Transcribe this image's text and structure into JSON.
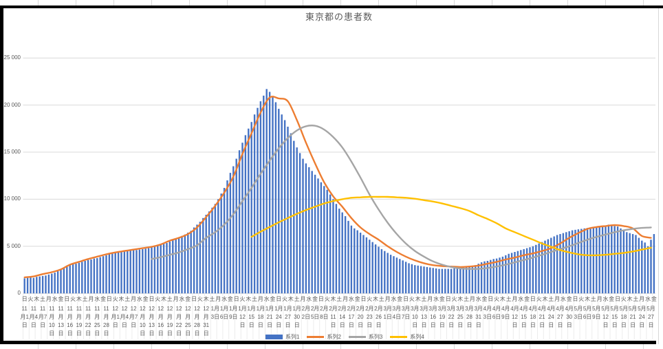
{
  "title": "東京都の患者数",
  "legend": [
    {
      "label": "系列1",
      "color": "#4472C4",
      "swatch": "bar"
    },
    {
      "label": "系列2",
      "color": "#ED7D31",
      "swatch": "line"
    },
    {
      "label": "系列3",
      "color": "#A5A5A5",
      "swatch": "line"
    },
    {
      "label": "系列4",
      "color": "#FFC000",
      "swatch": "line"
    }
  ],
  "y_axis": {
    "tick_labels": [
      "0",
      "5 000",
      "10 000",
      "15 000",
      "20 000",
      "25 000"
    ],
    "tick_values": [
      0,
      5000,
      10000,
      15000,
      20000,
      25000
    ]
  },
  "x_axis": {
    "weekday_labels": "日火木土月水金日火木土月水金日火木土月水金日火木土月水金日火木土月水金日火木土月水金日火木土月水金日火木土月水金日火木土月水金日火木土月水金日火木土月水金日火木土月水金日火木土月水金日火木土月水金日火木土月水金",
    "weekday_step_days": 2,
    "date_step_days": 3,
    "total_days": 209,
    "date_labels": [
      "11\n月1\n日",
      "11\n月4\n日",
      "11\n月7\n日",
      "11\n月\n10\n日",
      "11\n月\n13\n日",
      "11\n月\n16\n日",
      "11\n月\n19\n日",
      "11\n月\n22\n日",
      "11\n月\n25\n日",
      "11\n月\n28\n日",
      "12\n月1\n日",
      "12\n月4\n日",
      "12\n月7\n日",
      "12\n月\n10\n日",
      "12\n月\n13\n日",
      "12\n月\n16\n日",
      "12\n月\n19\n日",
      "12\n月\n22\n日",
      "12\n月\n25\n日",
      "12\n月\n28\n日",
      "12\n月\n31\n日",
      "1月\n3日",
      "1月\n6日",
      "1月\n9日",
      "1月\n12\n日",
      "1月\n15\n日",
      "1月\n18\n日",
      "1月\n21\n日",
      "1月\n24\n日",
      "1月\n27\n日",
      "1月\n30\n日",
      "2月\n2日",
      "2月\n5日",
      "2月\n8日",
      "2月\n11\n日",
      "2月\n14\n日",
      "2月\n17\n日",
      "2月\n20\n日",
      "2月\n23\n日",
      "2月\n26\n日",
      "3月\n1日",
      "3月\n4日",
      "3月\n7日",
      "3月\n10\n日",
      "3月\n13\n日",
      "3月\n16\n日",
      "3月\n19\n日",
      "3月\n22\n日",
      "3月\n25\n日",
      "3月\n28\n日",
      "3月\n31\n日",
      "4月\n3日",
      "4月\n6日",
      "4月\n9日",
      "4月\n12\n日",
      "4月\n15\n日",
      "4月\n18\n日",
      "4月\n21\n日",
      "4月\n24\n日",
      "4月\n27\n日",
      "4月\n30\n日",
      "5月\n3日",
      "5月\n6日",
      "5月\n9日",
      "5月\n12\n日",
      "5月\n15\n日",
      "5月\n18\n日",
      "5月\n21\n日",
      "5月\n24\n日",
      "5月\n27\n日"
    ]
  },
  "chart_data": {
    "type": "bar",
    "subtype": "combo-bar-lines",
    "title": "東京都の患者数",
    "xlabel": "",
    "ylabel": "",
    "ylim": [
      0,
      25000
    ],
    "x_start_date": "11月1日",
    "x_end_date": "5月29日",
    "grid": true,
    "legend_position": "bottom",
    "series": [
      {
        "name": "系列1",
        "type": "bar",
        "color": "#4472C4",
        "start_day": 0,
        "step_days": 1,
        "values": [
          1600,
          1650,
          1700,
          1650,
          1750,
          1800,
          1850,
          1900,
          2000,
          2100,
          2200,
          2350,
          2500,
          2700,
          2900,
          3000,
          3100,
          3150,
          3250,
          3350,
          3450,
          3550,
          3600,
          3700,
          3750,
          3850,
          3950,
          4050,
          4150,
          4250,
          4300,
          4350,
          4400,
          4450,
          4500,
          4550,
          4600,
          4600,
          4650,
          4700,
          4750,
          4800,
          4900,
          5000,
          5100,
          5150,
          5250,
          5350,
          5500,
          5650,
          5800,
          5950,
          6100,
          6250,
          6450,
          6650,
          7000,
          7300,
          7600,
          8000,
          8350,
          8700,
          9100,
          9500,
          10000,
          10600,
          11200,
          12000,
          12800,
          13500,
          14300,
          15200,
          16000,
          16800,
          17500,
          18200,
          19000,
          19700,
          20400,
          21000,
          21700,
          21400,
          20900,
          20300,
          19600,
          19000,
          18400,
          17700,
          17000,
          16200,
          15500,
          14900,
          14300,
          13800,
          13400,
          13000,
          12600,
          12200,
          11800,
          11400,
          11000,
          10500,
          10000,
          9500,
          9000,
          8600,
          8200,
          7700,
          7200,
          6900,
          6700,
          6450,
          6200,
          5950,
          5700,
          5450,
          5200,
          4950,
          4700,
          4500,
          4300,
          4100,
          3950,
          3800,
          3650,
          3500,
          3350,
          3200,
          3100,
          3000,
          2950,
          2900,
          2850,
          2800,
          2750,
          2700,
          2650,
          2600,
          2600,
          2600,
          2600,
          2600,
          2650,
          2650,
          2700,
          2750,
          2800,
          2850,
          2900,
          3000,
          3150,
          3300,
          3400,
          3450,
          3550,
          3650,
          3700,
          3800,
          3900,
          4050,
          4200,
          4300,
          4400,
          4500,
          4600,
          4700,
          4800,
          4900,
          5000,
          5150,
          5300,
          5450,
          5600,
          5750,
          5900,
          6050,
          6200,
          6300,
          6400,
          6500,
          6600,
          6700,
          6750,
          6800,
          6850,
          6900,
          6950,
          6950,
          7000,
          7000,
          7050,
          7100,
          7200,
          7300,
          7200,
          7150,
          7100,
          6900,
          6700,
          6500,
          6400,
          6300,
          6200,
          5900,
          5600,
          5400,
          5000,
          5700,
          6300
        ]
      },
      {
        "name": "系列2",
        "type": "line",
        "color": "#ED7D31",
        "start_day": 0,
        "step_days": 3,
        "values": [
          1700,
          1800,
          2050,
          2250,
          2550,
          3050,
          3350,
          3650,
          3900,
          4150,
          4350,
          4500,
          4650,
          4800,
          4950,
          5200,
          5600,
          5900,
          6300,
          7000,
          8100,
          9300,
          10700,
          12400,
          14800,
          17000,
          19200,
          20800,
          20700,
          20400,
          18400,
          16000,
          13800,
          11800,
          10300,
          9200,
          8000,
          7000,
          6300,
          5700,
          5000,
          4400,
          3900,
          3500,
          3200,
          3000,
          2900,
          2850,
          2800,
          2850,
          2950,
          3150,
          3350,
          3600,
          3800,
          4050,
          4250,
          4500,
          4800,
          5300,
          5900,
          6400,
          6850,
          7050,
          7150,
          7250,
          7150,
          6900,
          6100,
          5900
        ]
      },
      {
        "name": "系列3",
        "type": "line",
        "color": "#A5A5A5",
        "start_day": 42,
        "step_days": 3,
        "values": [
          3650,
          3850,
          4100,
          4350,
          4700,
          5100,
          5900,
          6500,
          7300,
          8400,
          9800,
          11200,
          12700,
          14100,
          15400,
          16500,
          17300,
          17750,
          17800,
          17400,
          16600,
          15500,
          14000,
          12300,
          10500,
          8900,
          7500,
          6300,
          5300,
          4500,
          3900,
          3400,
          3050,
          2800,
          2650,
          2600,
          2600,
          2700,
          2850,
          3050,
          3300,
          3550,
          3800,
          4100,
          4400,
          4700,
          5000,
          5350,
          5700,
          6000,
          6250,
          6500,
          6700,
          6850,
          6950,
          7000
        ]
      },
      {
        "name": "系列4",
        "type": "line",
        "color": "#FFC000",
        "start_day": 75,
        "step_days": 3,
        "values": [
          6000,
          6550,
          7050,
          7550,
          8000,
          8450,
          8850,
          9200,
          9550,
          9800,
          10000,
          10150,
          10200,
          10250,
          10250,
          10250,
          10200,
          10150,
          10050,
          9900,
          9750,
          9550,
          9300,
          9050,
          8750,
          8300,
          7900,
          7450,
          6900,
          6500,
          6100,
          5700,
          5300,
          4950,
          4600,
          4350,
          4150,
          4050,
          4050,
          4100,
          4200,
          4300,
          4450,
          4650,
          4850
        ]
      }
    ]
  }
}
